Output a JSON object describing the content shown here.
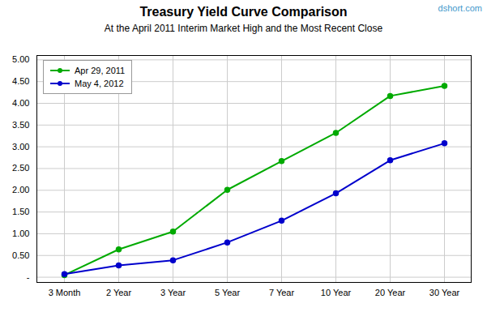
{
  "chart_data": {
    "type": "line",
    "title": "Treasury Yield Curve Comparison",
    "subtitle": "At the April 2011 Interim Market High and the Most Recent Close",
    "annotations": [
      "dshort.com"
    ],
    "categories": [
      "3 Month",
      "2 Year",
      "3 Year",
      "5 Year",
      "7 Year",
      "10 Year",
      "20 Year",
      "30 Year"
    ],
    "series": [
      {
        "name": "Apr 29, 2011",
        "color": "#00AA00",
        "marker": "circle",
        "values": [
          0.05,
          0.64,
          1.05,
          2.01,
          2.67,
          3.32,
          4.17,
          4.4
        ]
      },
      {
        "name": "May 4, 2012",
        "color": "#0000CC",
        "marker": "circle",
        "values": [
          0.07,
          0.27,
          0.39,
          0.8,
          1.3,
          1.93,
          2.69,
          3.08
        ]
      }
    ],
    "ylim": [
      -0.12,
      5.1
    ],
    "yticks": [
      {
        "value": 0.0,
        "label": "-"
      },
      {
        "value": 0.5,
        "label": "0.50"
      },
      {
        "value": 1.0,
        "label": "1.00"
      },
      {
        "value": 1.5,
        "label": "1.50"
      },
      {
        "value": 2.0,
        "label": "2.00"
      },
      {
        "value": 2.5,
        "label": "2.50"
      },
      {
        "value": 3.0,
        "label": "3.00"
      },
      {
        "value": 3.5,
        "label": "3.50"
      },
      {
        "value": 4.0,
        "label": "4.00"
      },
      {
        "value": 4.5,
        "label": "4.50"
      },
      {
        "value": 5.0,
        "label": "5.00"
      }
    ],
    "grid": true,
    "legend": "upper left"
  }
}
